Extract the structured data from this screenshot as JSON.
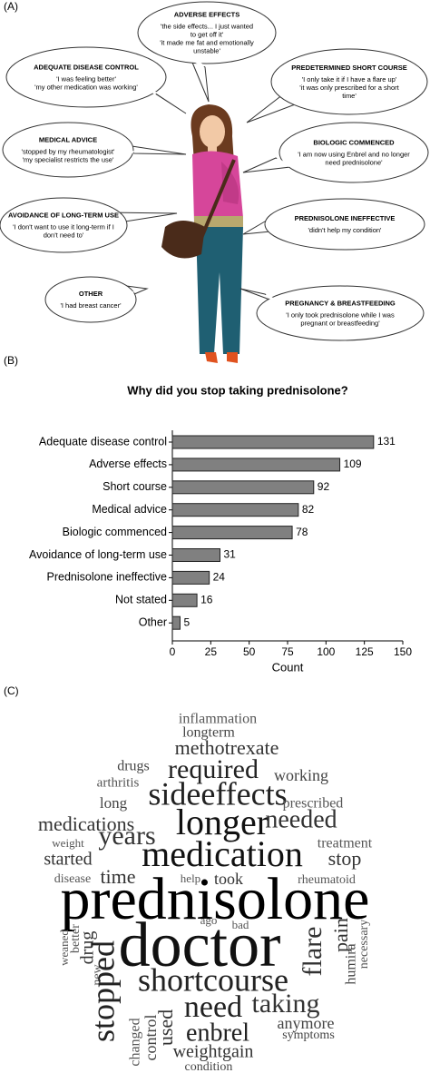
{
  "panel_a": {
    "label": "(A)",
    "bubbles": [
      {
        "title": "ADVERSE EFFECTS",
        "lines": [
          "'the side effects... I just wanted",
          "to get off it'",
          "'it made me fat and emotionally",
          "unstable'"
        ]
      },
      {
        "title": "ADEQUATE DISEASE CONTROL",
        "lines": [
          "'I was feeling better'",
          "'my other medication was working'"
        ]
      },
      {
        "title": "PREDETERMINED SHORT COURSE",
        "lines": [
          "'I only take it if I have a flare up'",
          "'it was only prescribed for a short",
          "time'"
        ]
      },
      {
        "title": "MEDICAL ADVICE",
        "lines": [
          "'stopped by my rheumatologist'",
          "'my specialist restricts the use'"
        ]
      },
      {
        "title": "BIOLOGIC COMMENCED",
        "lines": [
          "'I am now using Enbrel and no longer",
          "need prednisolone'"
        ]
      },
      {
        "title": "AVOIDANCE OF LONG-TERM USE",
        "lines": [
          "'I don't want to use it long-term if I",
          "don't need to'"
        ]
      },
      {
        "title": "PREDNISOLONE INEFFECTIVE",
        "lines": [
          "'didn't help my condition'"
        ]
      },
      {
        "title": "OTHER",
        "lines": [
          "'I had breast cancer'"
        ]
      },
      {
        "title": "PREGNANCY & BREASTFEEDING",
        "lines": [
          "'I only took prednisolone while I was",
          "pregnant or breastfeeding'"
        ]
      }
    ]
  },
  "panel_b_label": "(B)",
  "chart_data": {
    "type": "bar",
    "orientation": "horizontal",
    "title": "Why did you stop taking prednisolone?",
    "categories": [
      "Adequate disease control",
      "Adverse effects",
      "Short course",
      "Medical advice",
      "Biologic commenced",
      "Avoidance of long-term use",
      "Prednisolone ineffective",
      "Not stated",
      "Other"
    ],
    "values": [
      131,
      109,
      92,
      82,
      78,
      31,
      24,
      16,
      5
    ],
    "color": "#808080",
    "xlabel": "Count",
    "xlim": [
      0,
      150
    ],
    "xticks": [
      0,
      25,
      50,
      75,
      100,
      125,
      150
    ]
  },
  "panel_c": {
    "label": "(C)",
    "words": [
      "inflammation",
      "longterm",
      "methotrexate",
      "drugs",
      "required",
      "working",
      "arthritis",
      "sideeffects",
      "long",
      "prescribed",
      "medications",
      "longer",
      "needed",
      "years",
      "weight",
      "treatment",
      "medication",
      "started",
      "stop",
      "disease",
      "time",
      "help",
      "took",
      "rheumatoid",
      "prednisolone",
      "ago",
      "bad",
      "doctor",
      "weaned",
      "better",
      "drug",
      "new",
      "flare",
      "pain",
      "humira",
      "necessary",
      "shortcourse",
      "stopped",
      "need",
      "taking",
      "anymore",
      "used",
      "enbrel",
      "symptoms",
      "changed",
      "control",
      "weightgain",
      "condition"
    ]
  }
}
